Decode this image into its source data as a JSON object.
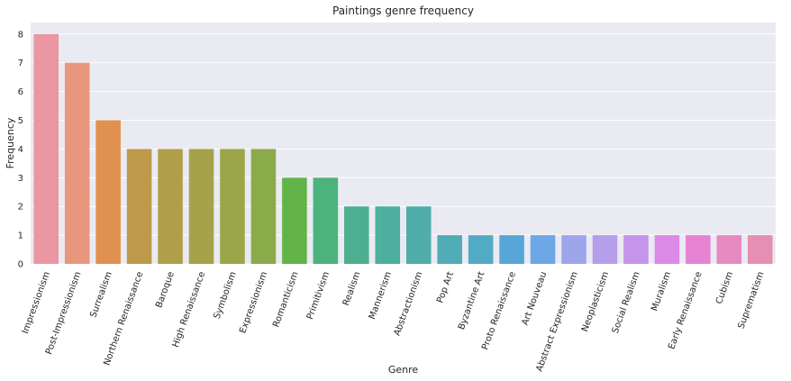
{
  "chart_data": {
    "type": "bar",
    "title": "Paintings genre frequency",
    "xlabel": "Genre",
    "ylabel": "Frequency",
    "ylim": [
      0,
      8.4
    ],
    "yticks": [
      0,
      1,
      2,
      3,
      4,
      5,
      6,
      7,
      8
    ],
    "grid": true,
    "categories": [
      "Impressionism",
      "Post-Impressionism",
      "Surrealism",
      "Northern Renaissance",
      "Baroque",
      "High Renaissance",
      "Symbolism",
      "Expressionism",
      "Romanticism",
      "Primitivism",
      "Realism",
      "Mannerism",
      "Abstractionism",
      "Pop Art",
      "Byzantine Art",
      "Proto Renaissance",
      "Art Nouveau",
      "Abstract Expressionism",
      "Neoplasticism",
      "Social Realism",
      "Muralism",
      "Early Renaissance",
      "Cubism",
      "Suprematism"
    ],
    "values": [
      8,
      7,
      5,
      4,
      4,
      4,
      4,
      4,
      3,
      3,
      2,
      2,
      2,
      1,
      1,
      1,
      1,
      1,
      1,
      1,
      1,
      1,
      1,
      1
    ],
    "colors": [
      "#ea96a3",
      "#e9967e",
      "#e0914f",
      "#bd9a4a",
      "#b09f49",
      "#a5a249",
      "#9aa649",
      "#8bab4a",
      "#62b448",
      "#4bb37b",
      "#4cb090",
      "#4daf9d",
      "#4fadaa",
      "#51acb7",
      "#53aac4",
      "#56a7d7",
      "#6ea7e6",
      "#9ea5eb",
      "#b69fea",
      "#c495ea",
      "#dd89e6",
      "#e684d3",
      "#e78ac1",
      "#e68fb2"
    ],
    "background": "#eaeaf2",
    "gridcolor": "#ffffff"
  }
}
